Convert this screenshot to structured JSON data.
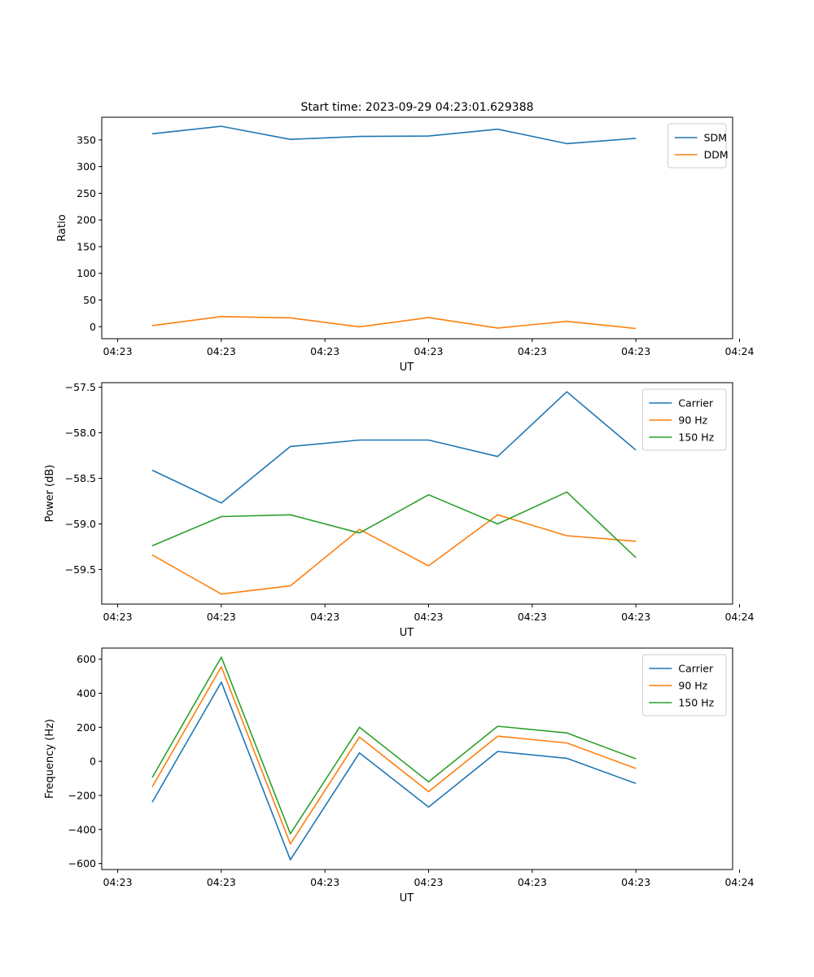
{
  "figure": {
    "title": "Start time: 2023-09-29 04:23:01.629388"
  },
  "chart_data": [
    {
      "type": "line",
      "xlabel": "UT",
      "ylabel": "Ratio",
      "x_tick_labels": [
        "04:23",
        "04:23",
        "04:23",
        "04:23",
        "04:23",
        "04:23",
        "04:24"
      ],
      "y_ticks": [
        0,
        50,
        100,
        150,
        200,
        250,
        300,
        350
      ],
      "y_tick_labels": [
        "0",
        "50",
        "100",
        "150",
        "200",
        "250",
        "300",
        "350"
      ],
      "ylim": [
        -22.5,
        392.5
      ],
      "xlim": [
        -0.23,
        8.9
      ],
      "x": [
        0.5,
        1.5,
        2.5,
        3.5,
        4.5,
        5.5,
        6.5,
        7.5
      ],
      "legend_position": "top-right",
      "series": [
        {
          "name": "SDM",
          "color": "#1f77b4",
          "values": [
            361.5,
            375.5,
            351.0,
            356.5,
            357.2,
            370.0,
            343.0,
            353.0
          ]
        },
        {
          "name": "DDM",
          "color": "#ff7f0e",
          "values": [
            2.0,
            19.0,
            16.5,
            -0.3,
            17.0,
            -2.5,
            10.0,
            -3.5
          ]
        }
      ]
    },
    {
      "type": "line",
      "xlabel": "UT",
      "ylabel": "Power (dB)",
      "x_tick_labels": [
        "04:23",
        "04:23",
        "04:23",
        "04:23",
        "04:23",
        "04:23",
        "04:24"
      ],
      "y_ticks": [
        -59.5,
        -59.0,
        -58.5,
        -58.0,
        -57.5
      ],
      "y_tick_labels": [
        "−59.5",
        "−59.0",
        "−58.5",
        "−58.0",
        "−57.5"
      ],
      "ylim": [
        -59.88,
        -57.45
      ],
      "xlim": [
        -0.23,
        8.9
      ],
      "x": [
        0.5,
        1.5,
        2.5,
        3.5,
        4.5,
        5.5,
        6.5,
        7.5
      ],
      "legend_position": "top-right",
      "series": [
        {
          "name": "Carrier",
          "color": "#1f77b4",
          "values": [
            -58.41,
            -58.77,
            -58.15,
            -58.08,
            -58.08,
            -58.26,
            -57.55,
            -58.19
          ]
        },
        {
          "name": "90 Hz",
          "color": "#ff7f0e",
          "values": [
            -59.34,
            -59.77,
            -59.68,
            -59.06,
            -59.46,
            -58.9,
            -59.13,
            -59.19
          ]
        },
        {
          "name": "150 Hz",
          "color": "#2ca02c",
          "values": [
            -59.24,
            -58.92,
            -58.9,
            -59.1,
            -58.68,
            -59.0,
            -58.65,
            -59.37
          ]
        }
      ]
    },
    {
      "type": "line",
      "xlabel": "UT",
      "ylabel": "Frequency (Hz)",
      "x_tick_labels": [
        "04:23",
        "04:23",
        "04:23",
        "04:23",
        "04:23",
        "04:23",
        "04:24"
      ],
      "y_ticks": [
        -600,
        -400,
        -200,
        0,
        200,
        400,
        600
      ],
      "y_tick_labels": [
        "−600",
        "−400",
        "−200",
        "0",
        "200",
        "400",
        "600"
      ],
      "ylim": [
        -635,
        665
      ],
      "xlim": [
        -0.23,
        8.9
      ],
      "x": [
        0.5,
        1.5,
        2.5,
        3.5,
        4.5,
        5.5,
        6.5,
        7.5
      ],
      "legend_position": "top-right",
      "series": [
        {
          "name": "Carrier",
          "color": "#1f77b4",
          "values": [
            -240,
            465,
            -578,
            50,
            -268,
            58,
            18,
            -130
          ]
        },
        {
          "name": "90 Hz",
          "color": "#ff7f0e",
          "values": [
            -150,
            555,
            -485,
            143,
            -178,
            148,
            108,
            -42
          ]
        },
        {
          "name": "150 Hz",
          "color": "#2ca02c",
          "values": [
            -95,
            612,
            -425,
            200,
            -120,
            206,
            167,
            15
          ]
        }
      ]
    }
  ]
}
